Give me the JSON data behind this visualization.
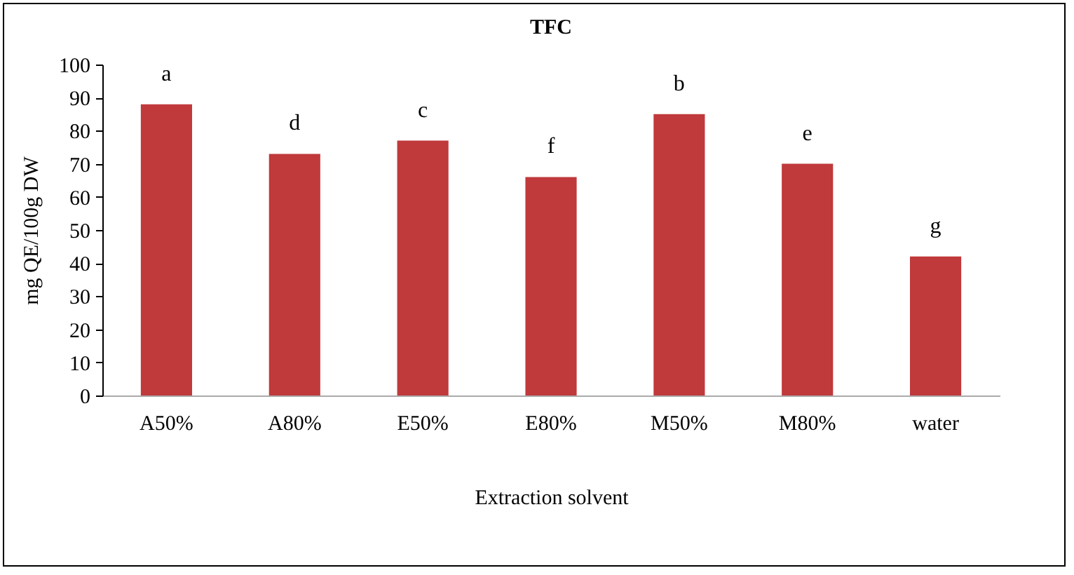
{
  "chart_data": {
    "type": "bar",
    "title": "TFC",
    "xlabel": "Extraction solvent",
    "ylabel": "mg QE/100g DW",
    "categories": [
      "A50%",
      "A80%",
      "E50%",
      "E80%",
      "M50%",
      "M80%",
      "water"
    ],
    "values": [
      88,
      73,
      77,
      66,
      85,
      70,
      42
    ],
    "color": "#c0393b",
    "ylim": [
      0,
      100
    ],
    "yticks": [
      0,
      10,
      20,
      30,
      40,
      50,
      60,
      70,
      80,
      90,
      100
    ],
    "grid": false,
    "annotations": [
      {
        "text": "a",
        "x": "A50%",
        "y": 88
      },
      {
        "text": "d",
        "x": "A80%",
        "y": 73
      },
      {
        "text": "c",
        "x": "E50%",
        "y": 77
      },
      {
        "text": "f",
        "x": "E80%",
        "y": 66
      },
      {
        "text": "b",
        "x": "M50%",
        "y": 85
      },
      {
        "text": "e",
        "x": "M80%",
        "y": 70
      },
      {
        "text": "g",
        "x": "water",
        "y": 42
      }
    ]
  }
}
